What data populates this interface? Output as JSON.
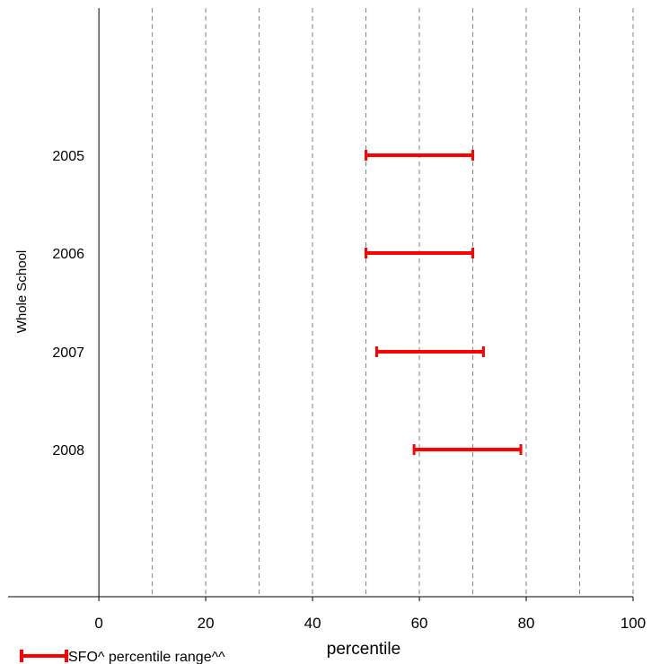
{
  "chart_data": {
    "type": "range",
    "xlabel": "percentile",
    "ylabel": "Whole School",
    "xlim": [
      -17,
      100
    ],
    "xticks": [
      0,
      20,
      40,
      60,
      80,
      100
    ],
    "gridlines_x": [
      10,
      20,
      30,
      40,
      50,
      60,
      70,
      80,
      90,
      100
    ],
    "grid": "vertical-dashed",
    "categories": [
      "2005",
      "2006",
      "2007",
      "2008"
    ],
    "series": [
      {
        "name": "SFO^ percentile range^^",
        "color": "#ff0000",
        "ranges": [
          {
            "category": "2005",
            "low": 50,
            "high": 70
          },
          {
            "category": "2006",
            "low": 50,
            "high": 70
          },
          {
            "category": "2007",
            "low": 52,
            "high": 72
          },
          {
            "category": "2008",
            "low": 59,
            "high": 79
          }
        ]
      }
    ],
    "legend_position": "bottom-left"
  },
  "colors": {
    "series": "#ff0000",
    "grid": "#808080",
    "axis": "#000000"
  }
}
